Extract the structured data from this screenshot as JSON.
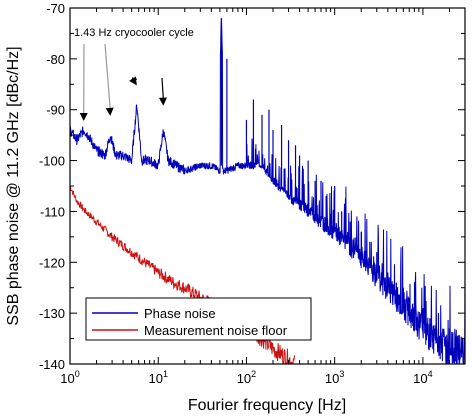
{
  "chart_data": {
    "type": "line",
    "xlabel": "Fourier frequency [Hz]",
    "ylabel": "SSB phase noise @ 11.2 GHz [dBc/Hz]",
    "x_scale": "log",
    "xlim": [
      1,
      30000
    ],
    "ylim": [
      -140,
      -70
    ],
    "x_ticks": [
      1,
      10,
      100,
      1000,
      10000
    ],
    "x_tick_labels": [
      {
        "base": "10",
        "exp": "0"
      },
      {
        "base": "10",
        "exp": "1"
      },
      {
        "base": "10",
        "exp": "2"
      },
      {
        "base": "10",
        "exp": "3"
      },
      {
        "base": "10",
        "exp": "4"
      }
    ],
    "y_ticks": [
      -140,
      -130,
      -120,
      -110,
      -100,
      -90,
      -80,
      -70
    ],
    "y_tick_labels": [
      "-140",
      "-130",
      "-120",
      "-110",
      "-100",
      "-90",
      "-80",
      "-70"
    ],
    "grid": false,
    "legend_position": "bottom-left",
    "annotations": [
      {
        "text": "1.43 Hz cryocooler cycle",
        "arrows_x": [
          1.43,
          2.86,
          5.72,
          11.44
        ],
        "arrow_tip_y": [
          -93,
          -92,
          -86,
          -90
        ]
      }
    ],
    "series": [
      {
        "name": "Phase noise",
        "color": "#0000bb",
        "points": [
          [
            1.0,
            -94
          ],
          [
            1.2,
            -96
          ],
          [
            1.43,
            -94
          ],
          [
            1.6,
            -95
          ],
          [
            2.0,
            -98
          ],
          [
            2.5,
            -99
          ],
          [
            2.86,
            -95
          ],
          [
            3.3,
            -99
          ],
          [
            4.0,
            -99
          ],
          [
            5.0,
            -100
          ],
          [
            5.72,
            -89
          ],
          [
            6.5,
            -100
          ],
          [
            8.0,
            -100
          ],
          [
            10.0,
            -101
          ],
          [
            11.44,
            -94
          ],
          [
            13.0,
            -100
          ],
          [
            20.0,
            -102
          ],
          [
            30.0,
            -101
          ],
          [
            40.0,
            -101
          ],
          [
            50.0,
            -102
          ],
          [
            52.0,
            -72
          ],
          [
            55.0,
            -102
          ],
          [
            60.0,
            -102
          ],
          [
            80.0,
            -101
          ],
          [
            100.0,
            -101
          ],
          [
            150.0,
            -101
          ],
          [
            200.0,
            -104
          ],
          [
            300.0,
            -107
          ],
          [
            500.0,
            -110
          ],
          [
            1000.0,
            -114
          ],
          [
            2000.0,
            -119
          ],
          [
            3000.0,
            -123
          ],
          [
            5000.0,
            -127
          ],
          [
            8000.0,
            -131
          ],
          [
            10000.0,
            -133
          ],
          [
            15000.0,
            -136
          ],
          [
            20000.0,
            -137
          ],
          [
            30000.0,
            -138
          ]
        ],
        "spurs": [
          [
            60,
            -80
          ],
          [
            100,
            -92
          ],
          [
            120,
            -88
          ],
          [
            150,
            -91
          ],
          [
            180,
            -90
          ],
          [
            200,
            -94
          ],
          [
            250,
            -93
          ],
          [
            300,
            -96
          ],
          [
            360,
            -97
          ],
          [
            400,
            -99
          ],
          [
            500,
            -100
          ],
          [
            600,
            -104
          ],
          [
            700,
            -104
          ],
          [
            800,
            -107
          ],
          [
            1000,
            -105
          ],
          [
            1200,
            -110
          ],
          [
            1500,
            -112
          ],
          [
            2000,
            -114
          ],
          [
            2500,
            -116
          ],
          [
            3000,
            -118
          ],
          [
            4000,
            -122
          ],
          [
            5000,
            -124
          ],
          [
            6000,
            -125
          ],
          [
            8000,
            -128
          ],
          [
            10000,
            -129
          ],
          [
            12000,
            -131
          ],
          [
            15000,
            -130
          ],
          [
            20000,
            -133
          ]
        ]
      },
      {
        "name": "Measurement noise floor",
        "color": "#cc1111",
        "points": [
          [
            1.0,
            -105
          ],
          [
            1.2,
            -108
          ],
          [
            1.5,
            -110
          ],
          [
            2.0,
            -112
          ],
          [
            3.0,
            -115
          ],
          [
            5.0,
            -118
          ],
          [
            7.0,
            -120
          ],
          [
            10.0,
            -122
          ],
          [
            15.0,
            -124
          ],
          [
            20.0,
            -125
          ],
          [
            30.0,
            -127
          ],
          [
            50.0,
            -129
          ],
          [
            70.0,
            -131
          ],
          [
            100.0,
            -133
          ],
          [
            150.0,
            -135
          ],
          [
            200.0,
            -137
          ],
          [
            300.0,
            -139
          ],
          [
            350.0,
            -140
          ]
        ]
      }
    ]
  }
}
